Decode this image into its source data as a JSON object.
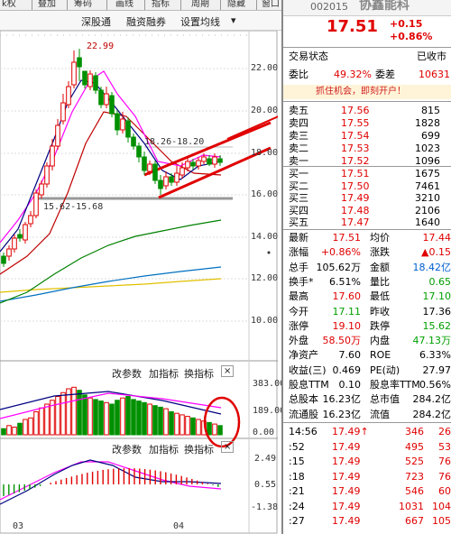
{
  "toolbar": {
    "tabs": [
      "k权",
      "叠加",
      "筹码",
      "画线",
      "指标",
      "周期",
      "隐藏",
      "窗口"
    ],
    "sub_items": [
      "深股通",
      "融资融券",
      "设置均线"
    ],
    "sub_dropdown": "▾"
  },
  "chart": {
    "price_labels": [
      "22.00",
      "20.00",
      "18.00",
      "16.00",
      "14.00",
      "12.00",
      "10.00"
    ],
    "annotations": {
      "high": "22.99",
      "range_upper": "18.26-18.20",
      "range_lower": "15.62-15.68"
    },
    "volume_labels": [
      "383.00",
      "189.00",
      "0.00"
    ],
    "macd_labels": [
      "2.49",
      "0.55",
      "-1.38"
    ],
    "x_labels": [
      "03",
      "04"
    ],
    "volume_tools": {
      "modify": "改参数",
      "add": "加指标",
      "switch": "换指标",
      "close": "×"
    },
    "macd_tools": {
      "modify": "改参数",
      "add": "加指标",
      "switch": "换指标",
      "close": "×"
    },
    "colors": {
      "up": "#e00000",
      "down": "#009000",
      "ma5": "#000080",
      "ma10": "#ff00ff",
      "ma20": "#c00000",
      "ma30": "#008000",
      "ma60": "#0070c0",
      "ma120": "#e0c000"
    }
  },
  "quote": {
    "code": "002015",
    "name": "协鑫能科",
    "price": "17.51",
    "change": "+0.15",
    "change_pct": "+0.86%",
    "status_label": "交易状态",
    "status_value": "已收市",
    "weibi_label": "委比",
    "weibi_value": "49.32%",
    "weicha_label": "委差",
    "weicha_value": "10631",
    "promo": "抓住机会，即刻开户！"
  },
  "asks": [
    {
      "label": "卖五",
      "price": "17.56",
      "vol": "815"
    },
    {
      "label": "卖四",
      "price": "17.55",
      "vol": "1828"
    },
    {
      "label": "卖三",
      "price": "17.54",
      "vol": "699"
    },
    {
      "label": "卖二",
      "price": "17.53",
      "vol": "1023"
    },
    {
      "label": "卖一",
      "price": "17.52",
      "vol": "1096"
    }
  ],
  "bids": [
    {
      "label": "买一",
      "price": "17.51",
      "vol": "1675"
    },
    {
      "label": "买二",
      "price": "17.50",
      "vol": "7461"
    },
    {
      "label": "买三",
      "price": "17.49",
      "vol": "3210"
    },
    {
      "label": "买四",
      "price": "17.48",
      "vol": "2106"
    },
    {
      "label": "买五",
      "price": "17.47",
      "vol": "1640"
    }
  ],
  "stats": [
    {
      "l1": "最新",
      "v1": "17.51",
      "c1": "red",
      "l2": "均价",
      "v2": "17.44",
      "c2": "red"
    },
    {
      "l1": "涨幅",
      "v1": "+0.86%",
      "c1": "red",
      "l2": "涨跌",
      "v2": "▲0.15",
      "c2": "red"
    },
    {
      "l1": "总手",
      "v1": "105.62万",
      "c1": "dk",
      "l2": "金额",
      "v2": "18.42亿",
      "c2": "blue"
    },
    {
      "l1": "换手*",
      "v1": "6.51%",
      "c1": "dk",
      "l2": "量比",
      "v2": "0.65",
      "c2": "green"
    },
    {
      "l1": "最高",
      "v1": "17.60",
      "c1": "red",
      "l2": "最低",
      "v2": "17.10",
      "c2": "green"
    },
    {
      "l1": "今开",
      "v1": "17.11",
      "c1": "green",
      "l2": "昨收",
      "v2": "17.36",
      "c2": "dk"
    },
    {
      "l1": "涨停",
      "v1": "19.10",
      "c1": "red",
      "l2": "跌停",
      "v2": "15.62",
      "c2": "green"
    },
    {
      "l1": "外盘",
      "v1": "58.50万",
      "c1": "red",
      "l2": "内盘",
      "v2": "47.13万",
      "c2": "green"
    },
    {
      "l1": "净资产",
      "v1": "7.60",
      "c1": "dk",
      "l2": "ROE",
      "v2": "6.33%",
      "c2": "dk"
    },
    {
      "l1": "收益(三)",
      "v1": "0.469",
      "c1": "dk",
      "l2": "PE(动)",
      "v2": "27.97",
      "c2": "dk"
    },
    {
      "l1": "股息TTM",
      "v1": "0.10",
      "c1": "dk",
      "l2": "股息率TTM",
      "v2": "0.56%",
      "c2": "dk"
    },
    {
      "l1": "总股本",
      "v1": "16.23亿",
      "c1": "dk",
      "l2": "总市值",
      "v2": "284.2亿",
      "c2": "dk"
    },
    {
      "l1": "流通股",
      "v1": "16.23亿",
      "c1": "dk",
      "l2": "流值",
      "v2": "284.2亿",
      "c2": "dk"
    }
  ],
  "ticks": [
    {
      "time": "14:56",
      "price": "17.49",
      "arrow": "↑",
      "vol": "346",
      "extra": "26"
    },
    {
      "time": ":52",
      "price": "17.49",
      "arrow": "",
      "vol": "495",
      "extra": "53"
    },
    {
      "time": ":15",
      "price": "17.49",
      "arrow": "",
      "vol": "525",
      "extra": "76"
    },
    {
      "time": ":18",
      "price": "17.49",
      "arrow": "",
      "vol": "723",
      "extra": "76"
    },
    {
      "time": ":21",
      "price": "17.49",
      "arrow": "",
      "vol": "546",
      "extra": "60"
    },
    {
      "time": ":24",
      "price": "17.49",
      "arrow": "",
      "vol": "1031",
      "extra": "104"
    },
    {
      "time": ":27",
      "price": "17.49",
      "arrow": "",
      "vol": "667",
      "extra": "105"
    }
  ]
}
